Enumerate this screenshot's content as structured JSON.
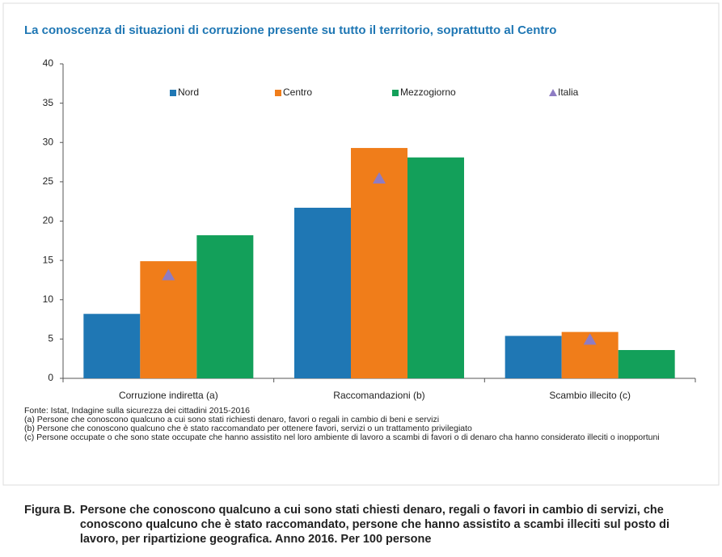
{
  "chart_data": {
    "type": "bar",
    "title": "La conoscenza di situazioni di corruzione presente su tutto il territorio, soprattutto al Centro",
    "categories": [
      "Corruzione indiretta (a)",
      "Raccomandazioni (b)",
      "Scambio illecito (c)"
    ],
    "series": [
      {
        "name": "Nord",
        "color": "#1f77b4",
        "values": [
          8.2,
          21.7,
          5.4
        ]
      },
      {
        "name": "Centro",
        "color": "#f07d1a",
        "values": [
          14.9,
          29.3,
          5.9
        ]
      },
      {
        "name": "Mezzogiorno",
        "color": "#13a05a",
        "values": [
          18.2,
          28.1,
          3.6
        ]
      },
      {
        "name": "Italia",
        "color": "#8e7cc3",
        "marker": "triangle",
        "values": [
          13.1,
          25.4,
          4.9
        ]
      }
    ],
    "ylim": [
      0,
      40
    ],
    "yticks": [
      0,
      5,
      10,
      15,
      20,
      25,
      30,
      35,
      40
    ],
    "grid": false,
    "source": "Fonte: Istat, Indagine sulla sicurezza dei cittadini 2015-2016",
    "notes": [
      "(a) Persone che conoscono qualcuno a cui sono stati richiesti denaro, favori o regali in cambio di beni e servizi",
      "(b) Persone che conoscono qualcuno che è stato raccomandato per ottenere favori, servizi o un trattamento privilegiato",
      "(c) Persone occupate o che sono state occupate che hanno assistito nel loro ambiente di lavoro a scambi di favori o di denaro cha hanno considerato illeciti o inopportuni"
    ],
    "caption_label": "Figura B.",
    "caption": "Persone che conoscono qualcuno a cui sono stati chiesti denaro, regali o favori in cambio di servizi, che conoscono qualcuno che è stato raccomandato, persone che hanno assistito a scambi illeciti sul posto di lavoro, per ripartizione geografica. Anno 2016. Per 100 persone"
  }
}
